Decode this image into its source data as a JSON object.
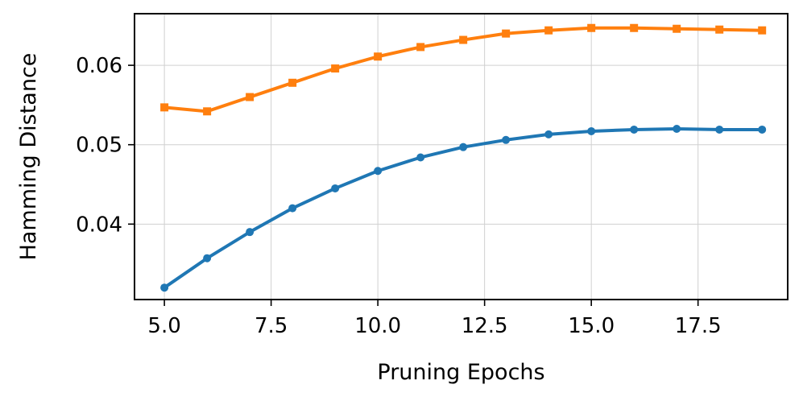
{
  "chart_data": {
    "type": "line",
    "title": "",
    "xlabel": "Pruning Epochs",
    "ylabel": "Hamming Distance",
    "x": [
      5,
      6,
      7,
      8,
      9,
      10,
      11,
      12,
      13,
      14,
      15,
      16,
      17,
      18,
      19
    ],
    "xlim": [
      4.3,
      19.6
    ],
    "ylim": [
      0.0305,
      0.0665
    ],
    "xticks": [
      5.0,
      7.5,
      10.0,
      12.5,
      15.0,
      17.5
    ],
    "xtick_labels": [
      "5.0",
      "7.5",
      "10.0",
      "12.5",
      "15.0",
      "17.5"
    ],
    "yticks": [
      0.04,
      0.05,
      0.06
    ],
    "ytick_labels": [
      "0.04",
      "0.05",
      "0.06"
    ],
    "grid": true,
    "legend": null,
    "series": [
      {
        "color": "#1f77b4",
        "marker": "circle",
        "values": [
          0.032,
          0.0357,
          0.039,
          0.042,
          0.0445,
          0.0467,
          0.0484,
          0.0497,
          0.0506,
          0.0513,
          0.0517,
          0.0519,
          0.052,
          0.0519,
          0.0519
        ]
      },
      {
        "color": "#ff7f0e",
        "marker": "square",
        "values": [
          0.0547,
          0.0542,
          0.056,
          0.0578,
          0.0596,
          0.0611,
          0.0623,
          0.0632,
          0.064,
          0.0644,
          0.0647,
          0.0647,
          0.0646,
          0.0645,
          0.0644
        ]
      }
    ]
  }
}
